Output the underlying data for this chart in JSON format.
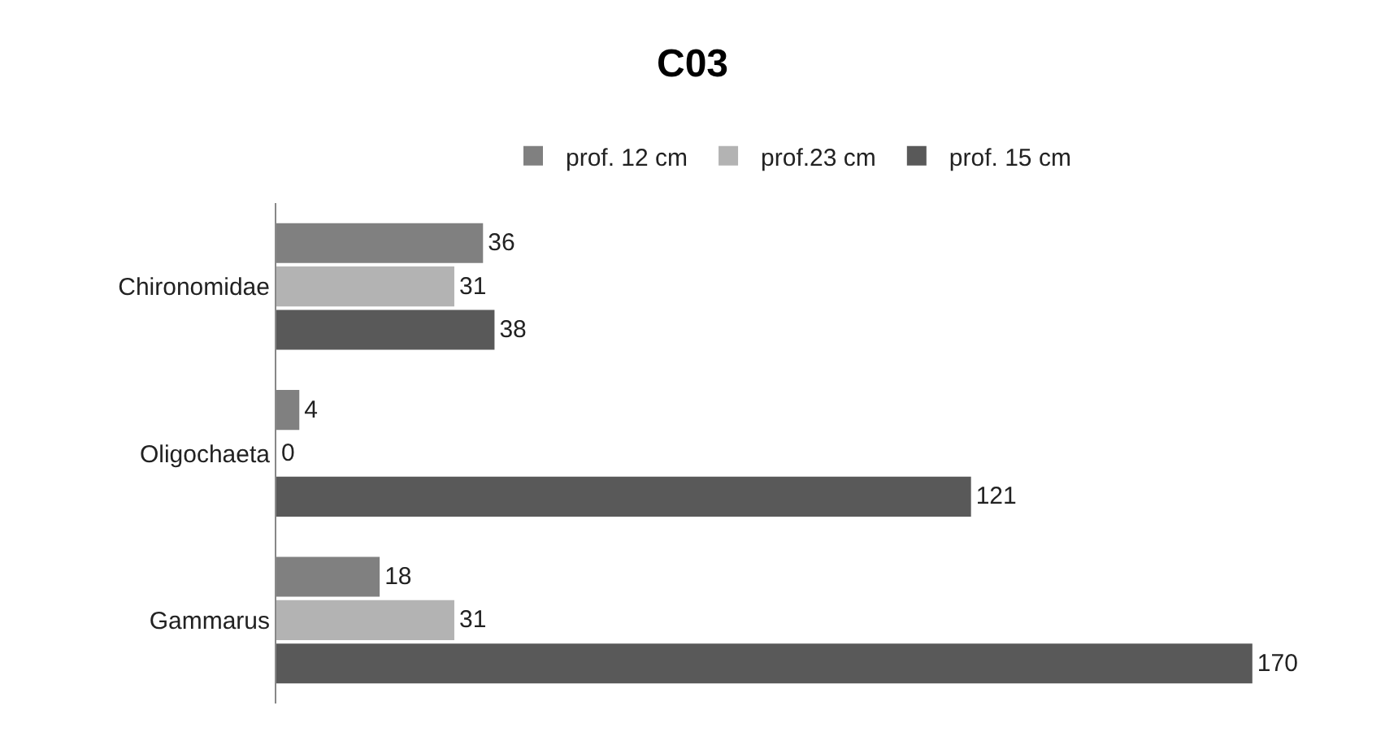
{
  "chart_data": {
    "type": "bar",
    "orientation": "horizontal",
    "title": "C03",
    "categories": [
      "Chironomidae",
      "Oligochaeta",
      "Gammarus"
    ],
    "series": [
      {
        "name": "prof. 12 cm",
        "color": "#808080",
        "values": [
          36,
          4,
          18
        ]
      },
      {
        "name": "prof.23 cm",
        "color": "#b3b3b3",
        "values": [
          31,
          0,
          31
        ]
      },
      {
        "name": "prof. 15 cm",
        "color": "#595959",
        "values": [
          38,
          121,
          170
        ]
      }
    ],
    "tick_labels": "y",
    "data_labels": true,
    "legend": "top"
  }
}
